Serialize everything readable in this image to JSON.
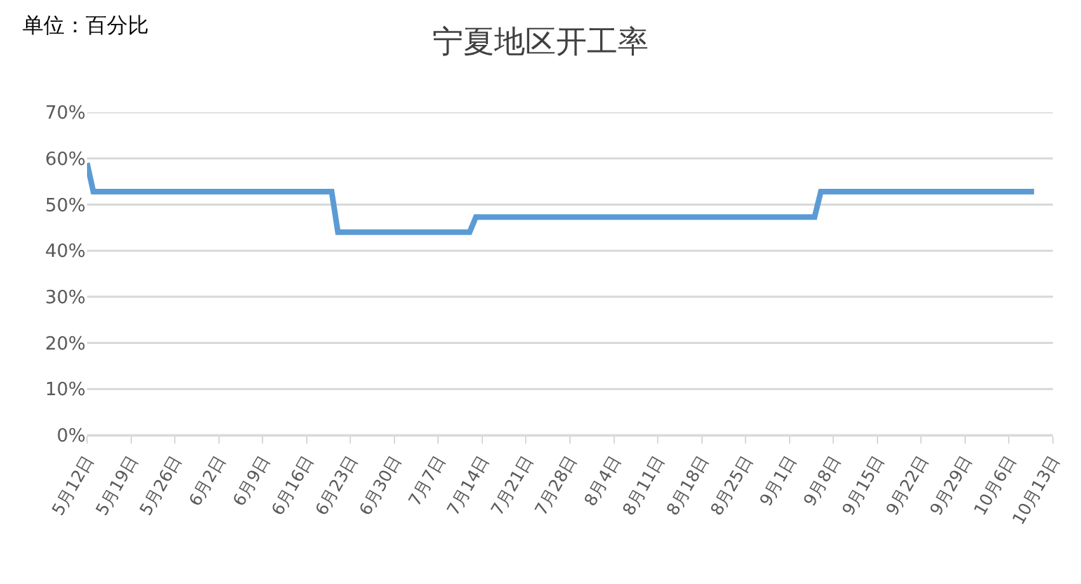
{
  "chart_data": {
    "type": "line",
    "title": "宁夏地区开工率",
    "annotations": [
      "单位：百分比"
    ],
    "x": [
      "--05-12",
      "--05-13",
      "--06-20",
      "--06-21",
      "--07-12",
      "--07-13",
      "--09-05",
      "--09-06",
      "--10-10"
    ],
    "series": [
      {
        "color": "#5b9bd5",
        "values": [
          59,
          52.8,
          52.8,
          44,
          44,
          47.3,
          47.3,
          52.8,
          52.8
        ]
      }
    ],
    "xlim": [
      "--05-12",
      "--10-13"
    ],
    "xticks": [
      {
        "value": "--05-12",
        "label": "5月12日"
      },
      {
        "value": "--05-19",
        "label": "5月19日"
      },
      {
        "value": "--05-26",
        "label": "5月26日"
      },
      {
        "value": "--06-02",
        "label": "6月2日"
      },
      {
        "value": "--06-09",
        "label": "6月9日"
      },
      {
        "value": "--06-16",
        "label": "6月16日"
      },
      {
        "value": "--06-23",
        "label": "6月23日"
      },
      {
        "value": "--06-30",
        "label": "6月30日"
      },
      {
        "value": "--07-07",
        "label": "7月7日"
      },
      {
        "value": "--07-14",
        "label": "7月14日"
      },
      {
        "value": "--07-21",
        "label": "7月21日"
      },
      {
        "value": "--07-28",
        "label": "7月28日"
      },
      {
        "value": "--08-04",
        "label": "8月4日"
      },
      {
        "value": "--08-11",
        "label": "8月11日"
      },
      {
        "value": "--08-18",
        "label": "8月18日"
      },
      {
        "value": "--08-25",
        "label": "8月25日"
      },
      {
        "value": "--09-01",
        "label": "9月1日"
      },
      {
        "value": "--09-08",
        "label": "9月8日"
      },
      {
        "value": "--09-15",
        "label": "9月15日"
      },
      {
        "value": "--09-22",
        "label": "9月22日"
      },
      {
        "value": "--09-29",
        "label": "9月29日"
      },
      {
        "value": "--10-06",
        "label": "10月6日"
      },
      {
        "value": "--10-13",
        "label": "10月13日"
      }
    ],
    "ylim": [
      0,
      70
    ],
    "yticks": [
      {
        "value": 0,
        "label": "0%"
      },
      {
        "value": 10,
        "label": "10%"
      },
      {
        "value": 20,
        "label": "20%"
      },
      {
        "value": 30,
        "label": "30%"
      },
      {
        "value": 40,
        "label": "40%"
      },
      {
        "value": 50,
        "label": "50%"
      },
      {
        "value": 60,
        "label": "60%"
      },
      {
        "value": 70,
        "label": "70%"
      }
    ],
    "grid": "y",
    "marker": "none",
    "line_style": "solid"
  }
}
